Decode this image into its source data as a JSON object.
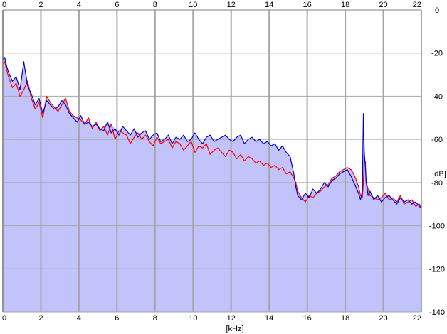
{
  "colors": {
    "fill": "#c2c3fa",
    "grid": "#a6a6a6",
    "left_channel": "#ff0000",
    "right_channel": "#0000cc",
    "axis_text": "#000000"
  },
  "chart_data": {
    "type": "line",
    "title": "",
    "xlabel": "[kHz]",
    "ylabel": "[dB]",
    "xlim": [
      0,
      22
    ],
    "ylim": [
      -140,
      0
    ],
    "x_ticks": [
      "0",
      "2",
      "4",
      "6",
      "8",
      "10",
      "12",
      "14",
      "16",
      "18",
      "20",
      "22"
    ],
    "y_ticks": [
      "0",
      "-20",
      "-40",
      "-60",
      "-80",
      "-100",
      "-120",
      "-140"
    ],
    "grid": true,
    "x": [
      0,
      0.1,
      0.2,
      0.3,
      0.5,
      0.7,
      0.9,
      1.1,
      1.3,
      1.5,
      1.7,
      1.9,
      2.1,
      2.3,
      2.5,
      2.7,
      2.9,
      3.1,
      3.3,
      3.5,
      3.7,
      3.9,
      4.1,
      4.3,
      4.5,
      4.7,
      4.9,
      5.1,
      5.3,
      5.5,
      5.7,
      5.9,
      6.1,
      6.3,
      6.5,
      6.7,
      6.9,
      7.1,
      7.3,
      7.5,
      7.7,
      7.9,
      8.1,
      8.3,
      8.5,
      8.7,
      8.9,
      9.1,
      9.3,
      9.5,
      9.7,
      9.9,
      10.1,
      10.3,
      10.5,
      10.7,
      10.9,
      11.1,
      11.3,
      11.5,
      11.7,
      11.9,
      12.1,
      12.3,
      12.5,
      12.7,
      12.9,
      13.1,
      13.3,
      13.5,
      13.7,
      13.9,
      14.1,
      14.3,
      14.5,
      14.7,
      14.9,
      15.1,
      15.3,
      15.4,
      15.5,
      15.7,
      15.9,
      16.1,
      16.3,
      16.5,
      16.7,
      16.9,
      17.1,
      17.3,
      17.5,
      17.7,
      17.9,
      18.1,
      18.3,
      18.5,
      18.7,
      18.8,
      18.9,
      18.95,
      19.0,
      19.05,
      19.1,
      19.2,
      19.3,
      19.5,
      19.7,
      19.9,
      20.1,
      20.3,
      20.5,
      20.7,
      20.9,
      21.1,
      21.3,
      21.5,
      21.7,
      21.9,
      22.0
    ],
    "series": [
      {
        "color": "#ff0000",
        "values": [
          -25,
          -24,
          -28,
          -31,
          -36,
          -34,
          -40,
          -37,
          -33,
          -41,
          -46,
          -43,
          -50,
          -40,
          -43,
          -45,
          -47,
          -44,
          -41,
          -47,
          -49,
          -50,
          -51,
          -53,
          -50,
          -55,
          -52,
          -56,
          -54,
          -58,
          -53,
          -60,
          -56,
          -57,
          -58,
          -62,
          -59,
          -57,
          -60,
          -58,
          -61,
          -63,
          -59,
          -62,
          -61,
          -60,
          -64,
          -61,
          -62,
          -65,
          -63,
          -61,
          -66,
          -63,
          -64,
          -62,
          -67,
          -65,
          -64,
          -66,
          -68,
          -65,
          -66,
          -69,
          -67,
          -70,
          -68,
          -69,
          -71,
          -70,
          -72,
          -71,
          -73,
          -72,
          -74,
          -73,
          -76,
          -75,
          -78,
          -80,
          -84,
          -87,
          -89,
          -86,
          -87,
          -85,
          -84,
          -82,
          -81,
          -78,
          -77,
          -75,
          -74,
          -73,
          -74,
          -77,
          -82,
          -86,
          -87,
          -80,
          -70,
          -70,
          -80,
          -83,
          -86,
          -87,
          -88,
          -87,
          -85,
          -88,
          -87,
          -89,
          -86,
          -90,
          -89,
          -88,
          -91,
          -90,
          -92
        ]
      },
      {
        "color": "#0000cc",
        "values": [
          -23,
          -22,
          -26,
          -29,
          -33,
          -31,
          -37,
          -24,
          -35,
          -39,
          -44,
          -41,
          -48,
          -42,
          -44,
          -46,
          -45,
          -42,
          -44,
          -48,
          -50,
          -52,
          -49,
          -53,
          -52,
          -54,
          -53,
          -55,
          -56,
          -52,
          -57,
          -55,
          -58,
          -54,
          -56,
          -58,
          -55,
          -59,
          -57,
          -56,
          -60,
          -58,
          -57,
          -61,
          -60,
          -58,
          -62,
          -59,
          -60,
          -58,
          -61,
          -60,
          -57,
          -60,
          -62,
          -59,
          -58,
          -61,
          -60,
          -59,
          -58,
          -60,
          -61,
          -59,
          -58,
          -62,
          -60,
          -59,
          -61,
          -60,
          -62,
          -61,
          -63,
          -62,
          -65,
          -63,
          -66,
          -68,
          -76,
          -82,
          -86,
          -88,
          -85,
          -87,
          -83,
          -85,
          -83,
          -80,
          -82,
          -79,
          -78,
          -76,
          -75,
          -74,
          -77,
          -81,
          -85,
          -88,
          -84,
          -48,
          -66,
          -72,
          -80,
          -86,
          -84,
          -88,
          -86,
          -89,
          -87,
          -86,
          -88,
          -90,
          -87,
          -89,
          -88,
          -90,
          -89,
          -91,
          -92
        ]
      }
    ]
  }
}
